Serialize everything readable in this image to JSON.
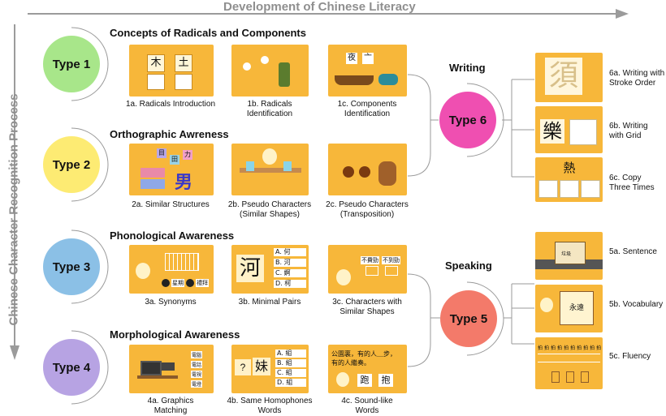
{
  "titles": {
    "top": "Development of Chinese Literacy",
    "side": "Chinese Character Recognition Process"
  },
  "colors": {
    "thumb_bg": "#f7b73a",
    "type1": "#a8e68a",
    "type2": "#fdeb73",
    "type3": "#8bc0e6",
    "type4": "#b7a3e3",
    "type5": "#f37a6a",
    "type6": "#ef4fb1",
    "arrow": "#9b9b9b"
  },
  "types": {
    "t1": "Type 1",
    "t2": "Type 2",
    "t3": "Type 3",
    "t4": "Type 4",
    "t5": "Type 5",
    "t6": "Type 6"
  },
  "sections": {
    "s1": "Concepts of Radicals and Components",
    "s2": "Orthographic Awreness",
    "s3": "Phonological Awareness",
    "s4": "Morphological Awareness",
    "writing": "Writing",
    "speaking": "Speaking"
  },
  "captions": {
    "c1a": "1a. Radicals Introduction",
    "c1b1": "1b. Radicals",
    "c1b2": "Identification",
    "c1c1": "1c. Components",
    "c1c2": "Identification",
    "c2a": "2a. Similar Structures",
    "c2b1": "2b. Pseudo Characters",
    "c2b2": "(Similar Shapes)",
    "c2c1": "2c. Pseudo Characters",
    "c2c2": "(Transposition)",
    "c3a": "3a. Synonyms",
    "c3b": "3b. Minimal Pairs",
    "c3c1": "3c. Characters with",
    "c3c2": "Similar Shapes",
    "c4a1": "4a. Graphics",
    "c4a2": "Matching",
    "c4b1": "4b. Same Homophones",
    "c4b2": "Words",
    "c4c1": "4c. Sound-like",
    "c4c2": "Words",
    "c6a1": "6a. Writing with",
    "c6a2": "Stroke Order",
    "c6b1": "6b. Writing",
    "c6b2": "with Grid",
    "c6c1": "6c. Copy",
    "c6c2": "Three Times",
    "c5a": "5a. Sentence",
    "c5b": "5b. Vocabulary",
    "c5c": "5c. Fluency"
  },
  "glyphs": {
    "g1a1": "木",
    "g1a2": "土",
    "g1c1": "夜",
    "g1c2": "亠",
    "g2a1": "男",
    "g2a2": "目",
    "g2a3": "田",
    "g2a4": "力",
    "g3a1": "星期",
    "g3a2": "禮拜",
    "g3c1": "不費勁",
    "g3c2": "不到勁",
    "g3b_main": "河",
    "g3b_opts": [
      "A. 何",
      "B. 河",
      "C. 婀",
      "D. 柯"
    ],
    "g4a1": "電腦",
    "g4a2": "電話",
    "g4a3": "電視",
    "g4a4": "電燈",
    "g4b_main": "妹",
    "g4b_q": "?",
    "g4b_opts": [
      "A. 組",
      "B. 組",
      "C. 組",
      "D. 組"
    ],
    "g4c_text1": "公園裏，有的人＿步，",
    "g4c_text2": "有的人繼奏。",
    "g4c1": "跑",
    "g4c2": "抱",
    "g6a": "須",
    "g6b": "樂",
    "g6c": "熱",
    "g5a": "垃圾",
    "g5b": "永遠",
    "g5c_row": [
      "拍",
      "拍",
      "拍",
      "拍",
      "拍",
      "拍",
      "拍",
      "拍",
      "拍",
      "拍"
    ]
  }
}
